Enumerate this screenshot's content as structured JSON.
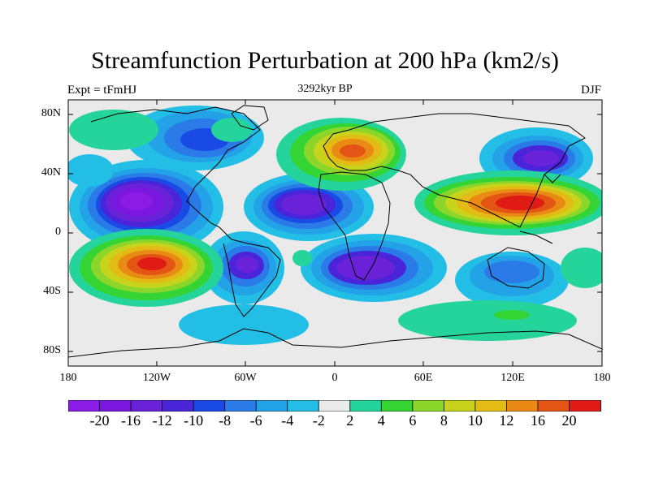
{
  "title": "Streamfunction Perturbation at 200 hPa (km2/s)",
  "subtitle_left": "Expt = tFmHJ",
  "subtitle_center": "3292kyr BP",
  "subtitle_right": "DJF",
  "y_ticks": [
    "80N",
    "40N",
    "0",
    "40S",
    "80S"
  ],
  "x_ticks": [
    "180",
    "120W",
    "60W",
    "0",
    "60E",
    "120E",
    "180"
  ],
  "colorbar": {
    "labels": [
      "-20",
      "-16",
      "-12",
      "-10",
      "-8",
      "-6",
      "-4",
      "-2",
      "2",
      "4",
      "6",
      "8",
      "10",
      "12",
      "16",
      "20"
    ],
    "colors": [
      "#8a1ce6",
      "#7a18e0",
      "#6a22d8",
      "#4a24d8",
      "#1a4ae6",
      "#2a7ae8",
      "#24a2e8",
      "#22bee6",
      "#eaeaea",
      "#24d49a",
      "#34d434",
      "#8cd62c",
      "#c8d41c",
      "#e2bc14",
      "#e88a14",
      "#e45414",
      "#e01a14"
    ]
  },
  "map_colors": {
    "neutral": "#eaeaea",
    "coast": "#000000"
  }
}
